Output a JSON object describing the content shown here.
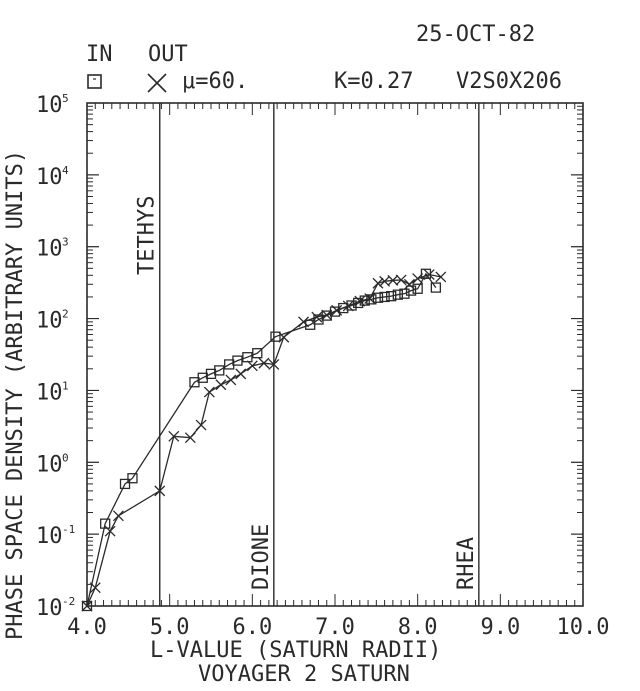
{
  "header": {
    "date": "25-OCT-82",
    "legend_in_label": "IN",
    "legend_out_label": "OUT",
    "mu_label": "μ=60.",
    "k_label": "K=0.27",
    "dataset_id": "V2S0X206"
  },
  "footer": {
    "subtitle": "VOYAGER 2 SATURN"
  },
  "chart_data": {
    "type": "line",
    "title": "",
    "xlabel": "L-VALUE (SATURN RADII)",
    "ylabel": "PHASE SPACE DENSITY (ARBITRARY UNITS)",
    "xlim": [
      4.0,
      10.0
    ],
    "ylim_log10": [
      -2,
      5
    ],
    "yscale": "log",
    "x_ticks": [
      "4.0",
      "5.0",
      "6.0",
      "7.0",
      "8.0",
      "9.0",
      "10.0"
    ],
    "y_ticks": [
      {
        "base": "10",
        "exp": "-2"
      },
      {
        "base": "10",
        "exp": "-1"
      },
      {
        "base": "10",
        "exp": "0"
      },
      {
        "base": "10",
        "exp": "1"
      },
      {
        "base": "10",
        "exp": "2"
      },
      {
        "base": "10",
        "exp": "3"
      },
      {
        "base": "10",
        "exp": "4"
      },
      {
        "base": "10",
        "exp": "5"
      }
    ],
    "grid": false,
    "moon_lines": [
      {
        "name": "TETHYS",
        "x": 4.88
      },
      {
        "name": "DIONE",
        "x": 6.26
      },
      {
        "name": "RHEA",
        "x": 8.74
      }
    ],
    "series": [
      {
        "name": "IN",
        "marker": "square",
        "points": [
          [
            4.0,
            0.01
          ],
          [
            4.22,
            0.14
          ],
          [
            4.46,
            0.5
          ],
          [
            4.55,
            0.6
          ],
          [
            5.3,
            13
          ],
          [
            5.4,
            15
          ],
          [
            5.5,
            17
          ],
          [
            5.6,
            19
          ],
          [
            5.72,
            23
          ],
          [
            5.82,
            26
          ],
          [
            5.94,
            29
          ],
          [
            6.06,
            33
          ],
          [
            6.28,
            56
          ],
          [
            6.7,
            82
          ],
          [
            6.8,
            97
          ],
          [
            6.9,
            110
          ],
          [
            7.0,
            125
          ],
          [
            7.1,
            140
          ],
          [
            7.2,
            152
          ],
          [
            7.28,
            165
          ],
          [
            7.36,
            178
          ],
          [
            7.44,
            185
          ],
          [
            7.52,
            195
          ],
          [
            7.6,
            200
          ],
          [
            7.68,
            205
          ],
          [
            7.76,
            215
          ],
          [
            7.84,
            222
          ],
          [
            7.92,
            245
          ],
          [
            8.0,
            260
          ],
          [
            8.1,
            420
          ],
          [
            8.22,
            270
          ]
        ]
      },
      {
        "name": "OUT",
        "marker": "x",
        "points": [
          [
            4.0,
            0.01
          ],
          [
            4.1,
            0.018
          ],
          [
            4.28,
            0.11
          ],
          [
            4.38,
            0.18
          ],
          [
            4.88,
            0.4
          ],
          [
            5.05,
            2.3
          ],
          [
            5.25,
            2.2
          ],
          [
            5.38,
            3.3
          ],
          [
            5.48,
            9.5
          ],
          [
            5.62,
            12
          ],
          [
            5.74,
            14
          ],
          [
            5.86,
            17
          ],
          [
            6.0,
            22
          ],
          [
            6.14,
            24
          ],
          [
            6.26,
            23
          ],
          [
            6.38,
            55
          ],
          [
            6.62,
            90
          ],
          [
            6.78,
            105
          ],
          [
            6.9,
            112
          ],
          [
            7.02,
            130
          ],
          [
            7.16,
            150
          ],
          [
            7.3,
            175
          ],
          [
            7.42,
            190
          ],
          [
            7.52,
            310
          ],
          [
            7.6,
            330
          ],
          [
            7.7,
            340
          ],
          [
            7.8,
            345
          ],
          [
            7.9,
            300
          ],
          [
            8.0,
            360
          ],
          [
            8.14,
            410
          ],
          [
            8.28,
            380
          ]
        ]
      }
    ]
  }
}
